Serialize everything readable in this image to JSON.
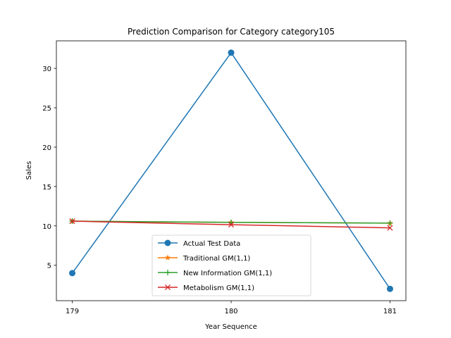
{
  "chart_data": {
    "type": "line",
    "title": "Prediction Comparison for Category category105",
    "xlabel": "Year Sequence",
    "ylabel": "Sales",
    "x": [
      179,
      180,
      181
    ],
    "x_ticks": [
      "179",
      "180",
      "181"
    ],
    "y_ticks": [
      "5",
      "10",
      "15",
      "20",
      "25",
      "30"
    ],
    "xlim": [
      178.9,
      181.1
    ],
    "ylim": [
      0.5,
      33.5
    ],
    "grid": false,
    "legend_position": "lower center",
    "series": [
      {
        "name": "Actual Test Data",
        "values": [
          4,
          32,
          2
        ],
        "color": "#1f77b4",
        "marker": "circle"
      },
      {
        "name": "Traditional GM(1,1)",
        "values": [
          10.6,
          10.45,
          10.35
        ],
        "color": "#ff7f0e",
        "marker": "star"
      },
      {
        "name": "New Information GM(1,1)",
        "values": [
          10.6,
          10.45,
          10.35
        ],
        "color": "#2ca02c",
        "marker": "plus"
      },
      {
        "name": "Metabolism GM(1,1)",
        "values": [
          10.6,
          10.15,
          9.75
        ],
        "color": "#d62728",
        "marker": "x"
      }
    ]
  }
}
